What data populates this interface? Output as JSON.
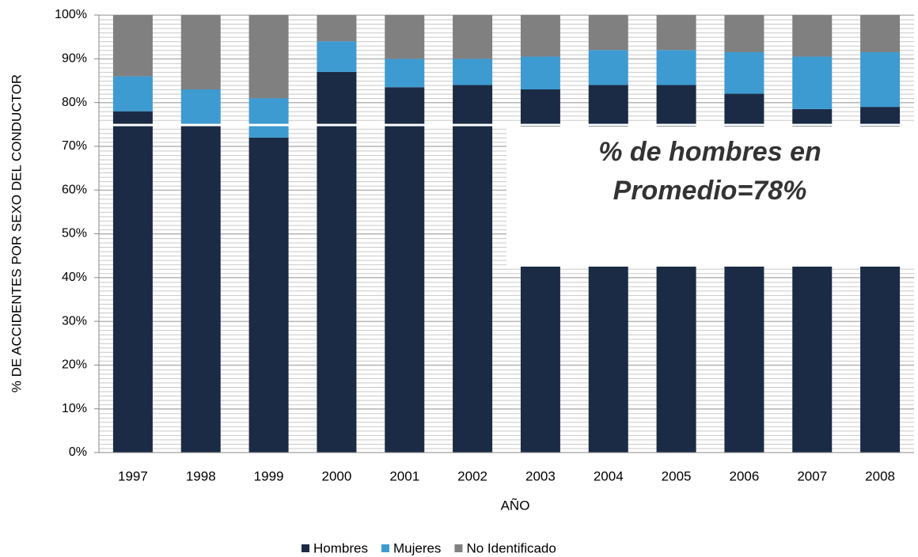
{
  "chart_data": {
    "type": "stacked_bar",
    "xlabel": "AÑO",
    "ylabel": "% DE ACCIDENTES POR SEXO DEL CONDUCTOR",
    "categories": [
      "1997",
      "1998",
      "1999",
      "2000",
      "2001",
      "2002",
      "2003",
      "2004",
      "2005",
      "2006",
      "2007",
      "2008"
    ],
    "series": [
      {
        "name": "Hombres",
        "color": "#1b2b45",
        "values": [
          78,
          75,
          72,
          87,
          83.5,
          84,
          83,
          84,
          84,
          82,
          78.5,
          79
        ]
      },
      {
        "name": "Mujeres",
        "color": "#3d9bd1",
        "values": [
          8,
          8,
          9,
          7,
          6.5,
          6,
          7.5,
          8,
          8,
          9.5,
          12,
          12.5
        ]
      },
      {
        "name": "No Identificado",
        "color": "#808080",
        "values": [
          14,
          17,
          19,
          6,
          10,
          10,
          9.5,
          8,
          8,
          8.5,
          9.5,
          8.5
        ]
      }
    ],
    "ylim": [
      0,
      100
    ],
    "yticks": [
      {
        "value": 0,
        "label": "0%"
      },
      {
        "value": 10,
        "label": "10%"
      },
      {
        "value": 20,
        "label": "20%"
      },
      {
        "value": 30,
        "label": "30%"
      },
      {
        "value": 40,
        "label": "40%"
      },
      {
        "value": 50,
        "label": "50%"
      },
      {
        "value": 60,
        "label": "60%"
      },
      {
        "value": 70,
        "label": "70%"
      },
      {
        "value": 80,
        "label": "80%"
      },
      {
        "value": 90,
        "label": "90%"
      },
      {
        "value": 100,
        "label": "100%"
      }
    ],
    "grid": true,
    "legend": "bottom",
    "annotation": [
      "% de hombres en",
      "Promedio=78%"
    ]
  }
}
